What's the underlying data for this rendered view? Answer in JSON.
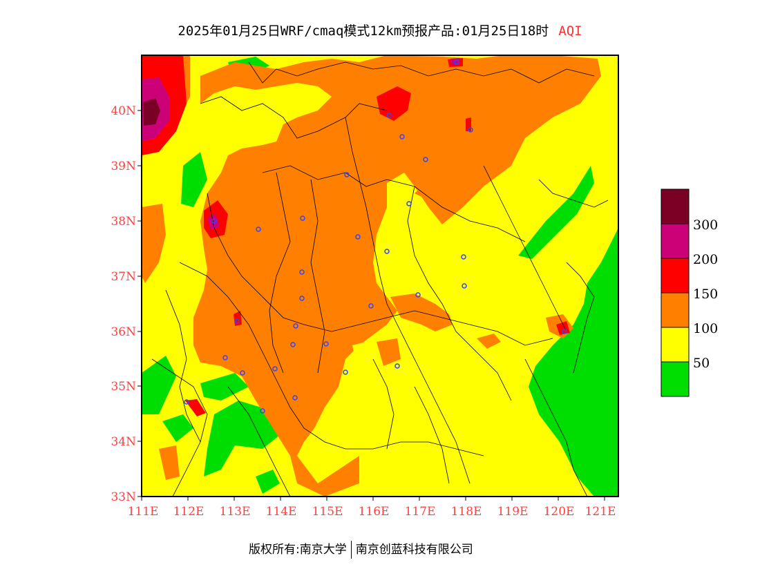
{
  "title": {
    "main": "2025年01月25日WRF/cmaq模式12km预报产品:01月25日18时",
    "variable": "AQI"
  },
  "map": {
    "lat_labels": [
      "33N",
      "34N",
      "35N",
      "36N",
      "37N",
      "38N",
      "39N",
      "40N"
    ],
    "lon_labels": [
      "111E",
      "112E",
      "113E",
      "114E",
      "115E",
      "116E",
      "117E",
      "118E",
      "119E",
      "120E",
      "121E"
    ],
    "lat_range": [
      33,
      41
    ],
    "lon_range": [
      111,
      121.3
    ],
    "label_color": "#ff4040"
  },
  "legend": {
    "levels": [
      {
        "color": "#7a0026",
        "label": ""
      },
      {
        "color": "#cc0077",
        "label": "300"
      },
      {
        "color": "#ff0000",
        "label": "200"
      },
      {
        "color": "#ff8000",
        "label": "150"
      },
      {
        "color": "#ffff00",
        "label": "100"
      },
      {
        "color": "#00dd00",
        "label": "50"
      }
    ]
  },
  "footer": {
    "copyright": "版权所有:南京大学",
    "company": "南京创蓝科技有限公司"
  }
}
